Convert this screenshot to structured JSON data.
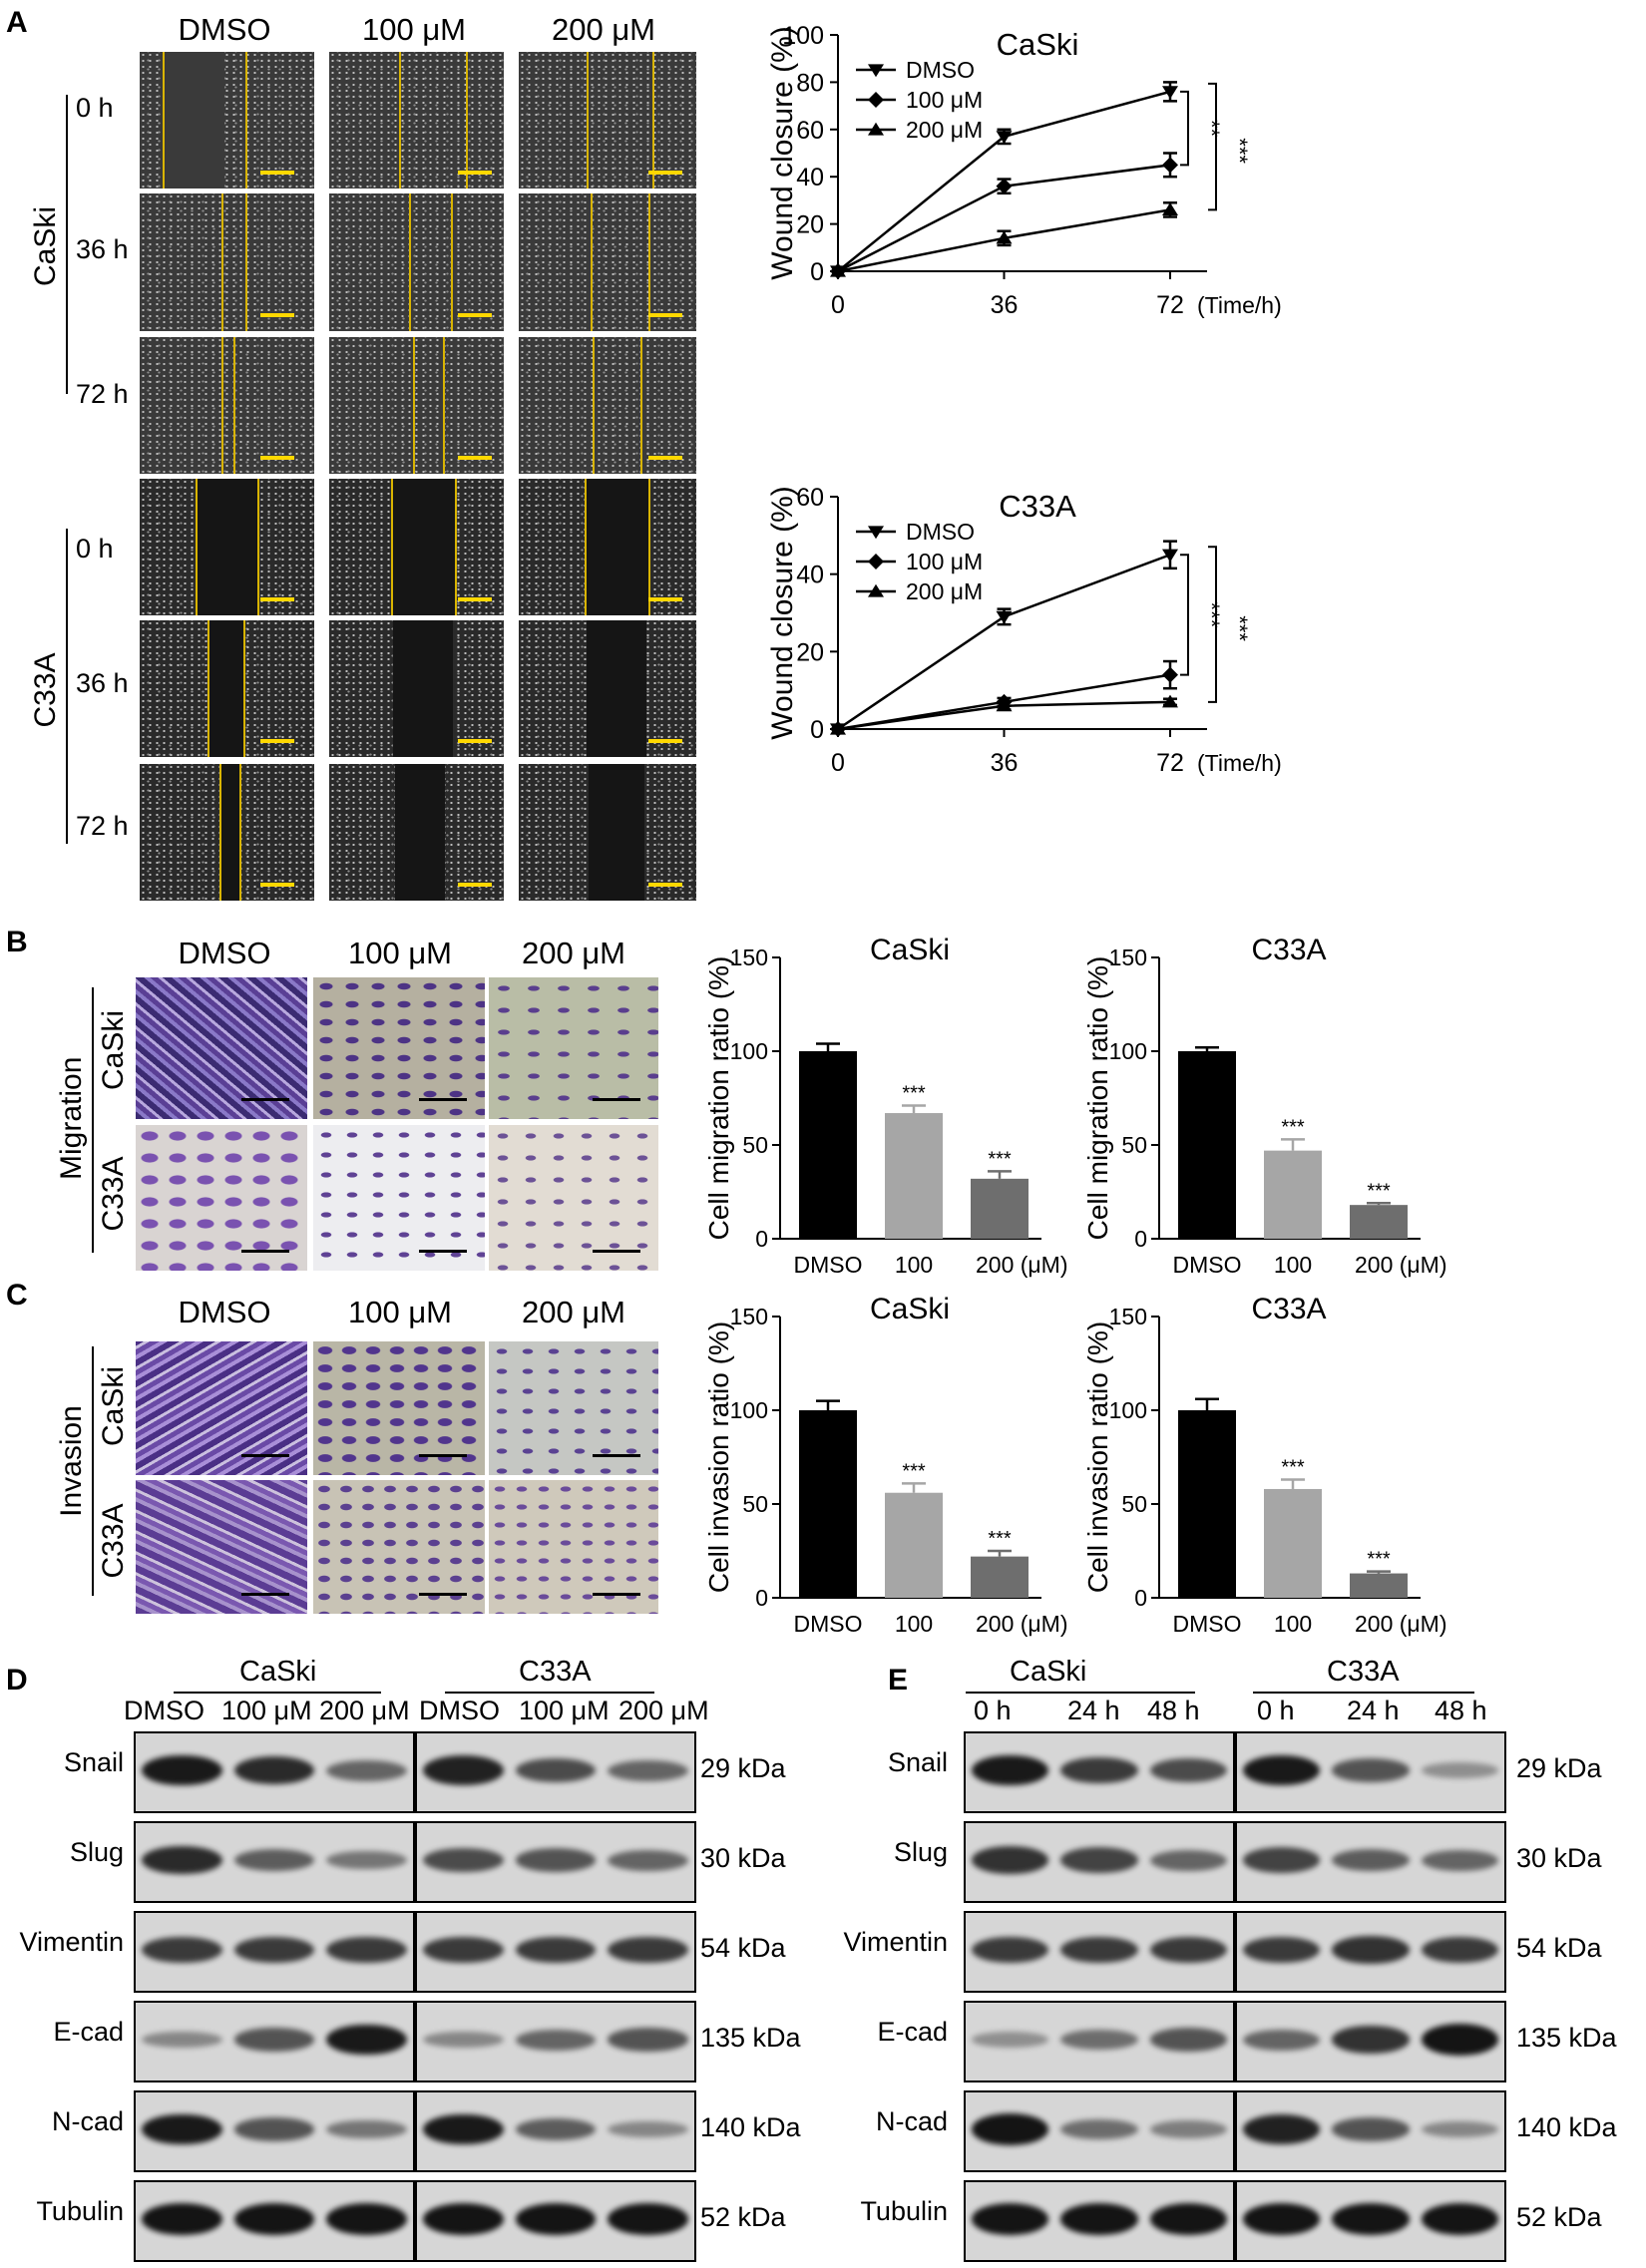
{
  "panels": [
    "A",
    "B",
    "C",
    "D",
    "E"
  ],
  "treatments": [
    "DMSO",
    "100 μM",
    "200 μM"
  ],
  "cell_lines": [
    "CaSki",
    "C33A"
  ],
  "timepoints": [
    "0 h",
    "36 h",
    "72 h"
  ],
  "panel_b": {
    "row_label": "Migration"
  },
  "panel_c": {
    "row_label": "Invasion"
  },
  "panel_d": {
    "groups": [
      "CaSki",
      "C33A"
    ],
    "lanes": [
      "DMSO",
      "100 μM",
      "200 μM",
      "DMSO",
      "100 μM",
      "200 μM"
    ],
    "proteins": [
      "Snail",
      "Slug",
      "Vimentin",
      "E-cad",
      "N-cad",
      "Tubulin"
    ],
    "weights": [
      "29 kDa",
      "30 kDa",
      "54 kDa",
      "135 kDa",
      "140 kDa",
      "52 kDa"
    ]
  },
  "panel_e": {
    "groups": [
      "CaSki",
      "C33A"
    ],
    "lanes": [
      "0 h",
      "24 h",
      "48 h",
      "0 h",
      "24 h",
      "48 h"
    ],
    "proteins": [
      "Snail",
      "Slug",
      "Vimentin",
      "E-cad",
      "N-cad",
      "Tubulin"
    ],
    "weights": [
      "29 kDa",
      "30 kDa",
      "54 kDa",
      "135 kDa",
      "140 kDa",
      "52 kDa"
    ]
  },
  "chart_data": [
    {
      "type": "line",
      "title": "CaSki",
      "xlabel": "(Time/h)",
      "ylabel": "Wound closure (%)",
      "x": [
        0,
        36,
        72
      ],
      "xticks": [
        "0",
        "36",
        "72"
      ],
      "yticks": [
        "0",
        "20",
        "40",
        "60",
        "80",
        "100"
      ],
      "ylim": [
        0,
        100
      ],
      "series": [
        {
          "name": "DMSO",
          "values": [
            0,
            57,
            76
          ],
          "errors": [
            0,
            3,
            4
          ]
        },
        {
          "name": "100 μM",
          "values": [
            0,
            36,
            45
          ],
          "errors": [
            0,
            3,
            5
          ]
        },
        {
          "name": "200 μM",
          "values": [
            0,
            14,
            26
          ],
          "errors": [
            0,
            3,
            3
          ]
        }
      ],
      "significance": [
        "**",
        "***"
      ],
      "legend": "top-left"
    },
    {
      "type": "line",
      "title": "C33A",
      "xlabel": "(Time/h)",
      "ylabel": "Wound closure (%)",
      "x": [
        0,
        36,
        72
      ],
      "xticks": [
        "0",
        "36",
        "72"
      ],
      "yticks": [
        "0",
        "20",
        "40",
        "60"
      ],
      "ylim": [
        0,
        60
      ],
      "series": [
        {
          "name": "DMSO",
          "values": [
            0,
            29,
            45
          ],
          "errors": [
            0,
            2,
            3.5
          ]
        },
        {
          "name": "100 μM",
          "values": [
            0,
            7,
            14
          ],
          "errors": [
            0,
            1,
            3.5
          ]
        },
        {
          "name": "200 μM",
          "values": [
            0,
            6,
            7
          ],
          "errors": [
            0,
            1,
            0.8
          ]
        }
      ],
      "significance": [
        "***",
        "***"
      ],
      "legend": "top-left"
    },
    {
      "type": "bar",
      "title": "CaSki",
      "ylabel": "Cell migration ratio (%)",
      "categories": [
        "DMSO",
        "100",
        "200 (μM)"
      ],
      "values": [
        100,
        67,
        32
      ],
      "errors": [
        4,
        4,
        4
      ],
      "labels": [
        "",
        "***",
        "***"
      ],
      "yticks": [
        "0",
        "50",
        "100",
        "150"
      ],
      "ylim": [
        0,
        150
      ],
      "colors": [
        "#000000",
        "#a6a6a6",
        "#6e6e6e"
      ]
    },
    {
      "type": "bar",
      "title": "C33A",
      "ylabel": "Cell migration ratio (%)",
      "categories": [
        "DMSO",
        "100",
        "200 (μM)"
      ],
      "values": [
        100,
        47,
        18
      ],
      "errors": [
        2,
        6,
        1
      ],
      "labels": [
        "",
        "***",
        "***"
      ],
      "yticks": [
        "0",
        "50",
        "100",
        "150"
      ],
      "ylim": [
        0,
        150
      ],
      "colors": [
        "#000000",
        "#a6a6a6",
        "#6e6e6e"
      ]
    },
    {
      "type": "bar",
      "title": "CaSki",
      "ylabel": "Cell invasion ratio (%)",
      "categories": [
        "DMSO",
        "100",
        "200 (μM)"
      ],
      "values": [
        100,
        56,
        22
      ],
      "errors": [
        5,
        5,
        3
      ],
      "labels": [
        "",
        "***",
        "***"
      ],
      "yticks": [
        "0",
        "50",
        "100",
        "150"
      ],
      "ylim": [
        0,
        150
      ],
      "colors": [
        "#000000",
        "#a6a6a6",
        "#6e6e6e"
      ]
    },
    {
      "type": "bar",
      "title": "C33A",
      "ylabel": "Cell invasion ratio (%)",
      "categories": [
        "DMSO",
        "100",
        "200 (μM)"
      ],
      "values": [
        100,
        58,
        13
      ],
      "errors": [
        6,
        5,
        1
      ],
      "labels": [
        "",
        "***",
        "***"
      ],
      "yticks": [
        "0",
        "50",
        "100",
        "150"
      ],
      "ylim": [
        0,
        150
      ],
      "colors": [
        "#000000",
        "#a6a6a6",
        "#6e6e6e"
      ]
    }
  ]
}
